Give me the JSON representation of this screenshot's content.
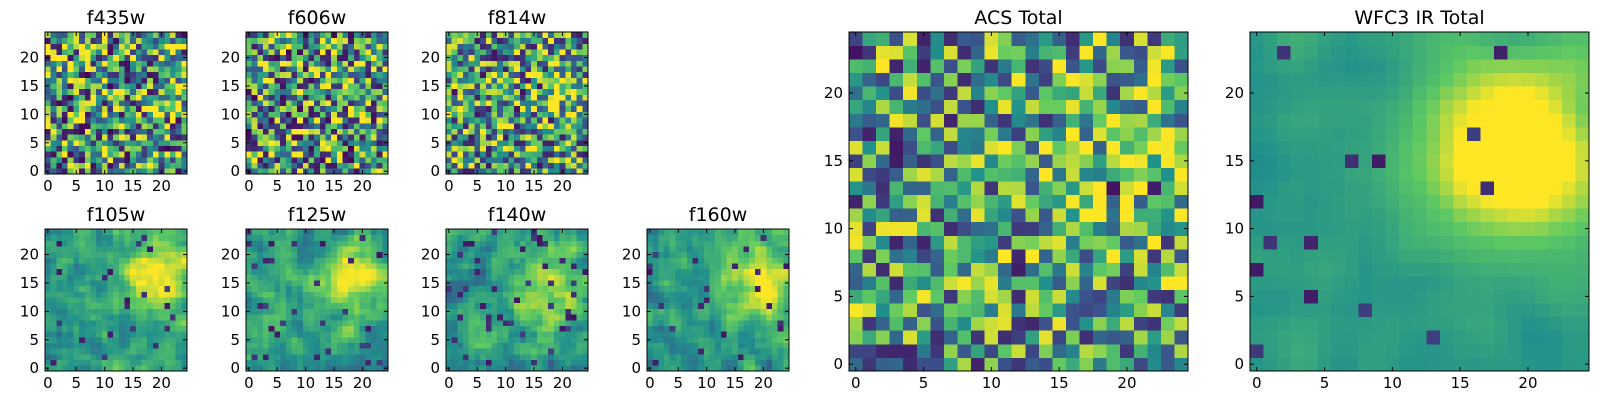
{
  "figure": {
    "colormap": "viridis",
    "colormap_stops": [
      "#440154",
      "#3b528b",
      "#21918c",
      "#5ec962",
      "#fde725"
    ],
    "axis_color": "#000000"
  },
  "chart_data": [
    {
      "type": "heatmap",
      "title": "f435w",
      "size": 25,
      "xlim": [
        0,
        24
      ],
      "ylim": [
        0,
        24
      ],
      "xticks": [
        0,
        5,
        10,
        15,
        20
      ],
      "yticks": [
        0,
        5,
        10,
        15,
        20
      ],
      "seed": 11,
      "smooth": 0,
      "blob": {
        "x": 18,
        "y": 16,
        "strength": 0.05
      },
      "noise": 0.55,
      "dark_spots": 0.06
    },
    {
      "type": "heatmap",
      "title": "f606w",
      "size": 25,
      "xlim": [
        0,
        24
      ],
      "ylim": [
        0,
        24
      ],
      "xticks": [
        0,
        5,
        10,
        15,
        20
      ],
      "yticks": [
        0,
        5,
        10,
        15,
        20
      ],
      "seed": 23,
      "smooth": 0,
      "blob": {
        "x": 18,
        "y": 16,
        "strength": 0.1
      },
      "noise": 0.55,
      "dark_spots": 0.06
    },
    {
      "type": "heatmap",
      "title": "f814w",
      "size": 25,
      "xlim": [
        0,
        24
      ],
      "ylim": [
        0,
        24
      ],
      "xticks": [
        0,
        5,
        10,
        15,
        20
      ],
      "yticks": [
        0,
        5,
        10,
        15,
        20
      ],
      "seed": 37,
      "smooth": 0,
      "blob": {
        "x": 19,
        "y": 15,
        "strength": 0.2
      },
      "noise": 0.5,
      "dark_spots": 0.05
    },
    {
      "type": "heatmap",
      "title": "f105w",
      "size": 25,
      "xlim": [
        0,
        24
      ],
      "ylim": [
        0,
        24
      ],
      "xticks": [
        0,
        5,
        10,
        15,
        20
      ],
      "yticks": [
        0,
        5,
        10,
        15,
        20
      ],
      "seed": 41,
      "smooth": 1,
      "blob": {
        "x": 19,
        "y": 16,
        "strength": 0.45
      },
      "noise": 0.4,
      "dark_spots": 0.04
    },
    {
      "type": "heatmap",
      "title": "f125w",
      "size": 25,
      "xlim": [
        0,
        24
      ],
      "ylim": [
        0,
        24
      ],
      "xticks": [
        0,
        5,
        10,
        15,
        20
      ],
      "yticks": [
        0,
        5,
        10,
        15,
        20
      ],
      "seed": 53,
      "smooth": 1,
      "blob": {
        "x": 19,
        "y": 16,
        "strength": 0.45
      },
      "noise": 0.4,
      "dark_spots": 0.06
    },
    {
      "type": "heatmap",
      "title": "f140w",
      "size": 25,
      "xlim": [
        0,
        24
      ],
      "ylim": [
        0,
        24
      ],
      "xticks": [
        0,
        5,
        10,
        15,
        20
      ],
      "yticks": [
        0,
        5,
        10,
        15,
        20
      ],
      "seed": 67,
      "smooth": 1,
      "blob": {
        "x": 18,
        "y": 14,
        "strength": 0.35
      },
      "noise": 0.45,
      "dark_spots": 0.05
    },
    {
      "type": "heatmap",
      "title": "f160w",
      "size": 25,
      "xlim": [
        0,
        24
      ],
      "ylim": [
        0,
        24
      ],
      "xticks": [
        0,
        5,
        10,
        15,
        20
      ],
      "yticks": [
        0,
        5,
        10,
        15,
        20
      ],
      "seed": 79,
      "smooth": 1,
      "blob": {
        "x": 19,
        "y": 15,
        "strength": 0.45
      },
      "noise": 0.4,
      "dark_spots": 0.05
    },
    {
      "type": "heatmap",
      "title": "ACS Total",
      "size": 25,
      "xlim": [
        0,
        24
      ],
      "ylim": [
        0,
        24
      ],
      "xticks": [
        0,
        5,
        10,
        15,
        20
      ],
      "yticks": [
        0,
        5,
        10,
        15,
        20
      ],
      "seed": 97,
      "smooth": 0,
      "blob": {
        "x": 19,
        "y": 16,
        "strength": 0.2
      },
      "noise": 0.45,
      "dark_spots": 0.04
    },
    {
      "type": "heatmap",
      "title": "WFC3 IR Total",
      "size": 25,
      "xlim": [
        0,
        24
      ],
      "ylim": [
        0,
        24
      ],
      "xticks": [
        0,
        5,
        10,
        15,
        20
      ],
      "yticks": [
        0,
        5,
        10,
        15,
        20
      ],
      "seed": 113,
      "smooth": 2,
      "blob": {
        "x": 19,
        "y": 16,
        "strength": 0.7
      },
      "noise": 0.2,
      "dark_spots": 0.03
    }
  ]
}
